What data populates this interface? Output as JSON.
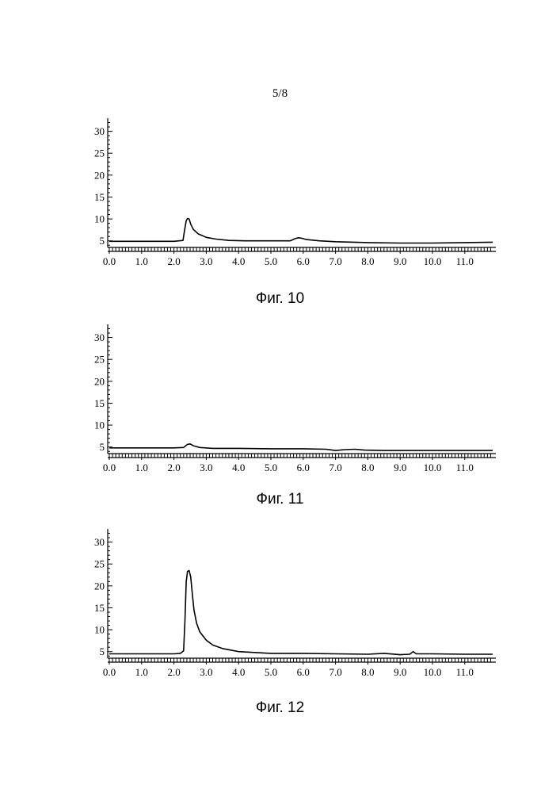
{
  "page_number": "5/8",
  "chart_data": [
    {
      "type": "line",
      "caption": "Фиг. 10",
      "xlim": [
        0.0,
        12.0
      ],
      "ylim": [
        3.5,
        33.0
      ],
      "x_ticks": [
        0.0,
        1.0,
        2.0,
        3.0,
        4.0,
        5.0,
        6.0,
        7.0,
        8.0,
        9.0,
        10.0,
        11.0
      ],
      "x_tick_labels": [
        "0.0",
        "1.0",
        "2.0",
        "3.0",
        "4.0",
        "5.0",
        "6.0",
        "7.0",
        "8.0",
        "9.0",
        "10.0",
        "11.0"
      ],
      "y_ticks": [
        5,
        10,
        15,
        20,
        25,
        30
      ],
      "y_tick_labels": [
        "5",
        "10",
        "15",
        "20",
        "25",
        "30"
      ],
      "series": [
        {
          "x": [
            0.0,
            1.0,
            2.0,
            2.28,
            2.33,
            2.38,
            2.42,
            2.47,
            2.52,
            2.6,
            2.75,
            3.0,
            3.3,
            3.7,
            4.2,
            5.0,
            5.6,
            5.75,
            5.85,
            5.95,
            6.1,
            6.5,
            7.0,
            8.0,
            9.0,
            10.0,
            11.0,
            12.0
          ],
          "y": [
            4.9,
            4.9,
            4.9,
            5.1,
            7.5,
            9.6,
            10.1,
            10.0,
            8.8,
            7.6,
            6.6,
            5.8,
            5.4,
            5.1,
            5.0,
            5.0,
            5.0,
            5.5,
            5.7,
            5.6,
            5.3,
            5.0,
            4.8,
            4.6,
            4.5,
            4.5,
            4.6,
            4.7
          ]
        }
      ]
    },
    {
      "type": "line",
      "caption": "Фиг. 11",
      "xlim": [
        0.0,
        12.0
      ],
      "ylim": [
        3.5,
        33.0
      ],
      "x_ticks": [
        0.0,
        1.0,
        2.0,
        3.0,
        4.0,
        5.0,
        6.0,
        7.0,
        8.0,
        9.0,
        10.0,
        11.0
      ],
      "x_tick_labels": [
        "0.0",
        "1.0",
        "2.0",
        "3.0",
        "4.0",
        "5.0",
        "6.0",
        "7.0",
        "8.0",
        "9.0",
        "10.0",
        "11.0"
      ],
      "y_ticks": [
        5,
        10,
        15,
        20,
        25,
        30
      ],
      "y_tick_labels": [
        "5",
        "10",
        "15",
        "20",
        "25",
        "30"
      ],
      "series": [
        {
          "x": [
            0.0,
            1.0,
            2.0,
            2.3,
            2.42,
            2.5,
            2.6,
            2.8,
            3.2,
            4.0,
            5.0,
            6.0,
            6.7,
            7.0,
            7.3,
            7.6,
            7.9,
            8.5,
            9.0,
            10.0,
            11.0,
            12.0
          ],
          "y": [
            4.8,
            4.8,
            4.8,
            4.9,
            5.6,
            5.7,
            5.3,
            4.9,
            4.7,
            4.7,
            4.6,
            4.6,
            4.5,
            4.2,
            4.4,
            4.5,
            4.3,
            4.2,
            4.2,
            4.2,
            4.2,
            4.2
          ]
        }
      ]
    },
    {
      "type": "line",
      "caption": "Фиг. 12",
      "xlim": [
        0.0,
        12.0
      ],
      "ylim": [
        3.5,
        33.0
      ],
      "x_ticks": [
        0.0,
        1.0,
        2.0,
        3.0,
        4.0,
        5.0,
        6.0,
        7.0,
        8.0,
        9.0,
        10.0,
        11.0
      ],
      "x_tick_labels": [
        "0.0",
        "1.0",
        "2.0",
        "3.0",
        "4.0",
        "5.0",
        "6.0",
        "7.0",
        "8.0",
        "9.0",
        "10.0",
        "11.0"
      ],
      "y_ticks": [
        5,
        10,
        15,
        20,
        25,
        30
      ],
      "y_tick_labels": [
        "5",
        "10",
        "15",
        "20",
        "25",
        "30"
      ],
      "series": [
        {
          "x": [
            0.0,
            1.0,
            2.0,
            2.2,
            2.3,
            2.34,
            2.38,
            2.42,
            2.47,
            2.52,
            2.57,
            2.62,
            2.7,
            2.8,
            3.0,
            3.2,
            3.5,
            4.0,
            5.0,
            6.0,
            7.0,
            8.0,
            8.5,
            9.0,
            9.3,
            9.4,
            9.5,
            10.0,
            11.0,
            12.0
          ],
          "y": [
            4.5,
            4.5,
            4.5,
            4.6,
            5.2,
            12.0,
            21.0,
            23.3,
            23.5,
            22.0,
            18.0,
            14.5,
            11.5,
            9.5,
            7.6,
            6.5,
            5.7,
            5.0,
            4.6,
            4.6,
            4.5,
            4.4,
            4.6,
            4.3,
            4.4,
            5.0,
            4.5,
            4.5,
            4.4,
            4.4
          ]
        }
      ]
    }
  ]
}
